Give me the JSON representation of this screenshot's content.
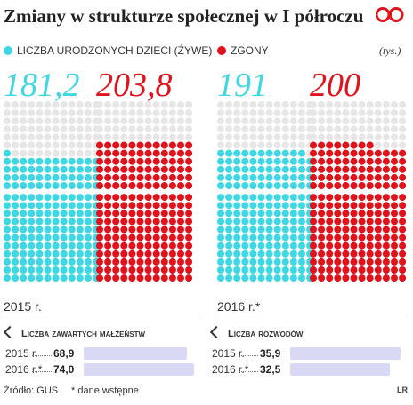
{
  "title": "Zmiany w strukturze społecznej w I półroczu",
  "unit": "(tys.)",
  "legend": [
    {
      "label": "LICZBA URODZONYCH DZIECI (ŻYWE)",
      "color": "#3fd7e3"
    },
    {
      "label": "ZGONY",
      "color": "#e0121b"
    }
  ],
  "colors": {
    "births": "#3fd7e3",
    "deaths": "#e0121b",
    "empty": "#e6e6e6",
    "bar": "#d9d9f5"
  },
  "chart_data": [
    {
      "type": "bar",
      "title": "",
      "categories": [
        "2015 r.",
        "2016 r.*"
      ],
      "series": [
        {
          "name": "LICZBA URODZONYCH DZIECI (ŻYWE)",
          "values": [
            181.2,
            191
          ]
        },
        {
          "name": "ZGONY",
          "values": [
            203.8,
            200
          ]
        }
      ],
      "value_labels": {
        "births": [
          "181,2",
          "191"
        ],
        "deaths": [
          "203,8",
          "200"
        ]
      }
    },
    {
      "type": "bar",
      "title": "Liczba zawartych małżeństw",
      "categories": [
        "2015 r.",
        "2016 r.*"
      ],
      "values": [
        68.9,
        74.0
      ],
      "value_labels": [
        "68,9",
        "74,0"
      ]
    },
    {
      "type": "bar",
      "title": "Liczba rozwodów",
      "categories": [
        "2015 r.",
        "2016 r.*"
      ],
      "values": [
        35.9,
        32.5
      ],
      "value_labels": [
        "35,9",
        "32,5"
      ]
    }
  ],
  "years": [
    "2015 r.",
    "2016 r.*"
  ],
  "marriages": {
    "title": "Liczba zawartych małżeństw",
    "rows": [
      {
        "label": "2015 r.",
        "value": "68,9"
      },
      {
        "label": "2016 r.*",
        "value": "74,0"
      }
    ]
  },
  "divorces": {
    "title": "Liczba rozwodów",
    "rows": [
      {
        "label": "2015 r.",
        "value": "35,9"
      },
      {
        "label": "2016 r.*",
        "value": "32,5"
      }
    ]
  },
  "footer": {
    "source": "Źródło: GUS",
    "note": "* dane wstępne",
    "credit": "LR"
  }
}
